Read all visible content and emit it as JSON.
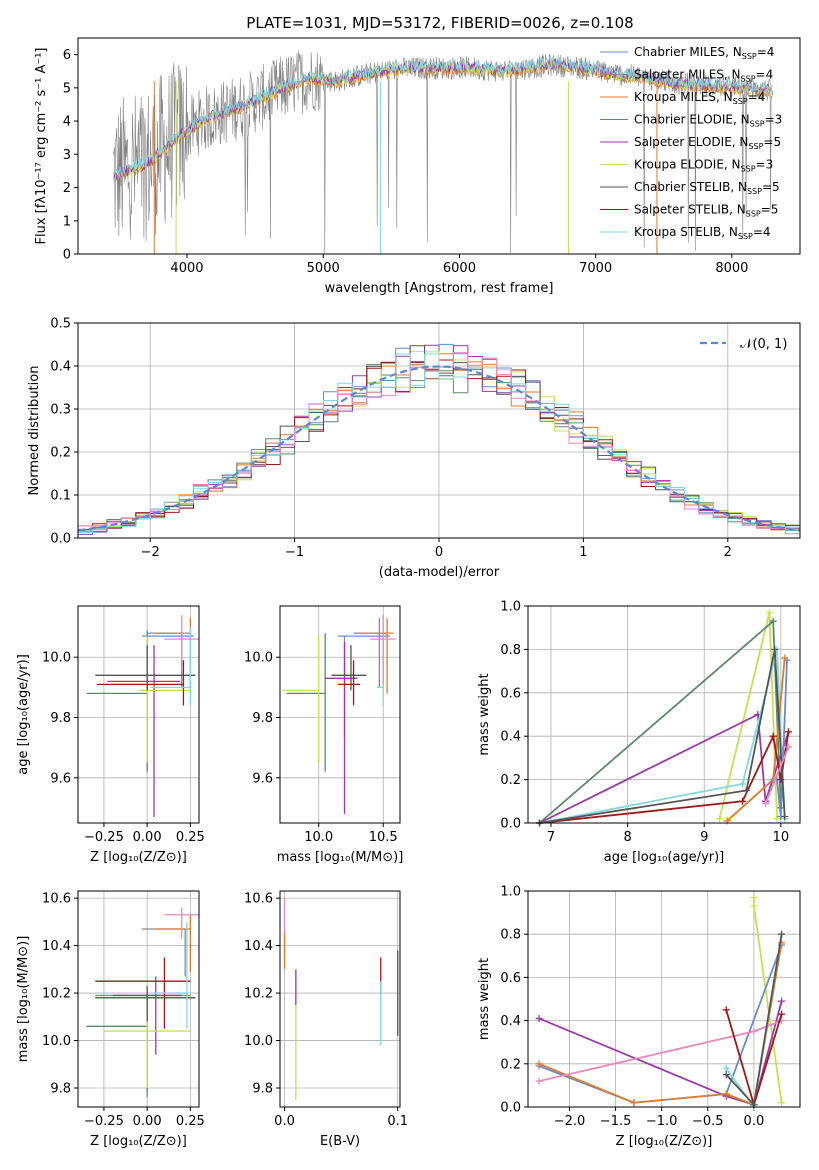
{
  "figure_title": "PLATE=1031, MJD=53172, FIBERID=0026, z=0.108",
  "colors": {
    "chabrier_miles": "#6b8bd0",
    "salpeter_miles": "#8a8a8a",
    "kroupa_miles": "#e07b2a",
    "chabrier_elodie": "#5a8a6a",
    "salpeter_elodie": "#9a3aa8",
    "kroupa_elodie": "#c8e050",
    "chabrier_stelib": "#555555",
    "salpeter_stelib": "#a01818",
    "kroupa_stelib": "#80d8e0",
    "pink": "#e888c0",
    "gaussian": "#5b88d8"
  },
  "chart_data": [
    {
      "id": "spectrum",
      "type": "line",
      "xlabel": "wavelength [Angstrom, rest frame]",
      "ylabel": "Flux [fλ10⁻¹⁷ erg cm⁻² s⁻¹ A⁻¹]",
      "xlim": [
        3200,
        8500
      ],
      "ylim": [
        0,
        6.5
      ],
      "xticks": [
        "4000",
        "5000",
        "6000",
        "7000",
        "8000"
      ],
      "yticks": [
        "0",
        "1",
        "2",
        "3",
        "4",
        "5",
        "6"
      ],
      "legend": {
        "placement": "top-right",
        "entries": [
          {
            "main": "Chabrier MILES, N",
            "sub": "SSP",
            "tail": "=4",
            "color": "chabrier_miles"
          },
          {
            "main": "Salpeter MILES, N",
            "sub": "SSP",
            "tail": "=4",
            "color": "salpeter_miles"
          },
          {
            "main": "Kroupa MILES, N",
            "sub": "SSP",
            "tail": "=4",
            "color": "kroupa_miles"
          },
          {
            "main": "Chabrier ELODIE, N",
            "sub": "SSP",
            "tail": "=3",
            "color": "chabrier_elodie"
          },
          {
            "main": "Salpeter ELODIE, N",
            "sub": "SSP",
            "tail": "=5",
            "color": "salpeter_elodie"
          },
          {
            "main": "Kroupa ELODIE, N",
            "sub": "SSP",
            "tail": "=3",
            "color": "kroupa_elodie"
          },
          {
            "main": "Chabrier STELIB, N",
            "sub": "SSP",
            "tail": "=5",
            "color": "chabrier_stelib"
          },
          {
            "main": "Salpeter STELIB, N",
            "sub": "SSP",
            "tail": "=5",
            "color": "salpeter_stelib"
          },
          {
            "main": "Kroupa STELIB, N",
            "sub": "SSP",
            "tail": "=4",
            "color": "kroupa_stelib"
          }
        ]
      },
      "continuum": {
        "x": [
          3500,
          3700,
          3900,
          4100,
          4300,
          4500,
          4700,
          4900,
          5100,
          5300,
          5500,
          5700,
          5900,
          6100,
          6300,
          6500,
          6700,
          6900,
          7100,
          7300,
          7500,
          7700,
          7900,
          8100,
          8300
        ],
        "y": [
          2.4,
          2.7,
          3.4,
          4.0,
          4.3,
          4.6,
          5.0,
          5.3,
          5.2,
          5.4,
          5.55,
          5.6,
          5.6,
          5.6,
          5.5,
          5.6,
          5.7,
          5.6,
          5.45,
          5.35,
          5.2,
          5.1,
          5.05,
          5.0,
          4.9
        ]
      }
    },
    {
      "id": "residuals",
      "type": "histogram",
      "xlabel": "(data-model)/error",
      "ylabel": "Normed distribution",
      "xlim": [
        -2.5,
        2.5
      ],
      "ylim": [
        0,
        0.5
      ],
      "xticks": [
        "−2",
        "−1",
        "0",
        "1",
        "2"
      ],
      "yticks": [
        "0.0",
        "0.1",
        "0.2",
        "0.3",
        "0.4",
        "0.5"
      ],
      "grid": true,
      "legend": {
        "placement": "top-right",
        "entries": [
          {
            "label": "𝒩(0, 1)",
            "color": "gaussian",
            "style": "dashed"
          }
        ]
      },
      "bin_width": 0.1,
      "bin_start": -2.5
    },
    {
      "id": "age_vs_Z",
      "type": "errorbar",
      "xlabel": "Z [log₁₀(Z/Z⊙)]",
      "ylabel": "age  [log₁₀(age/yr)]",
      "xlim": [
        -0.4,
        0.3
      ],
      "ylim": [
        9.45,
        10.17
      ],
      "xticks": [
        "−0.25",
        "0.00",
        "0.25"
      ],
      "yticks": [
        "9.6",
        "9.8",
        "10.0"
      ],
      "grid": true,
      "points": [
        {
          "x": 0.0,
          "y": 10.07,
          "x_err": [
            0.03,
            0.27
          ],
          "y_err": [
            0.43,
            0.02
          ],
          "color": "chabrier_miles"
        },
        {
          "x": 0.2,
          "y": 10.08,
          "x_err": [
            0.2,
            0.0
          ],
          "y_err": [
            0.18,
            0.0
          ],
          "color": "salpeter_miles"
        },
        {
          "x": 0.25,
          "y": 10.08,
          "x_err": [
            0.2,
            0.0
          ],
          "y_err": [
            0.2,
            0.05
          ],
          "color": "kroupa_miles"
        },
        {
          "x": 0.0,
          "y": 9.88,
          "x_err": [
            0.35,
            0.0
          ],
          "y_err": [
            0.26,
            0.2
          ],
          "color": "chabrier_elodie"
        },
        {
          "x": 0.04,
          "y": 9.92,
          "x_err": [
            0.27,
            0.15
          ],
          "y_err": [
            0.45,
            0.12
          ],
          "color": "salpeter_elodie"
        },
        {
          "x": 0.0,
          "y": 9.89,
          "x_err": [
            0.05,
            0.25
          ],
          "y_err": [
            0.24,
            0.18
          ],
          "color": "kroupa_elodie"
        },
        {
          "x": 0.0,
          "y": 9.94,
          "x_err": [
            0.3,
            0.28
          ],
          "y_err": [
            0.05,
            0.1
          ],
          "color": "chabrier_stelib"
        },
        {
          "x": 0.21,
          "y": 9.91,
          "x_err": [
            0.5,
            0.0
          ],
          "y_err": [
            0.07,
            0.08
          ],
          "color": "salpeter_stelib"
        },
        {
          "x": 0.25,
          "y": 9.9,
          "x_err": [
            0.23,
            0.0
          ],
          "y_err": [
            0.06,
            0.2
          ],
          "color": "kroupa_stelib"
        },
        {
          "x": 0.2,
          "y": 10.06,
          "x_err": [
            0.1,
            0.1
          ],
          "y_err": [
            0.1,
            0.08
          ],
          "color": "pink"
        }
      ]
    },
    {
      "id": "age_vs_mass",
      "type": "errorbar",
      "xlabel": "mass [log₁₀(M/M⊙)]",
      "ylabel": "",
      "xlim": [
        9.7,
        10.63
      ],
      "ylim": [
        9.45,
        10.17
      ],
      "xticks": [
        "10.0",
        "10.5"
      ],
      "yticks": [
        "9.6",
        "9.8",
        "10.0"
      ],
      "grid": true,
      "points": [
        {
          "x": 10.2,
          "y": 10.07,
          "x_err": [
            0.05,
            0.35
          ],
          "y_err": [
            0.35,
            0.0
          ],
          "color": "chabrier_miles"
        },
        {
          "x": 10.47,
          "y": 10.08,
          "x_err": [
            0.2,
            0.05
          ],
          "y_err": [
            0.18,
            0.05
          ],
          "color": "salpeter_miles"
        },
        {
          "x": 10.53,
          "y": 10.08,
          "x_err": [
            0.2,
            0.05
          ],
          "y_err": [
            0.2,
            0.05
          ],
          "color": "kroupa_miles"
        },
        {
          "x": 10.05,
          "y": 9.88,
          "x_err": [
            0.3,
            0.0
          ],
          "y_err": [
            0.26,
            0.2
          ],
          "color": "chabrier_elodie"
        },
        {
          "x": 10.2,
          "y": 9.93,
          "x_err": [
            0.15,
            0.1
          ],
          "y_err": [
            0.45,
            0.12
          ],
          "color": "salpeter_elodie"
        },
        {
          "x": 10.0,
          "y": 9.89,
          "x_err": [
            0.28,
            0.0
          ],
          "y_err": [
            0.24,
            0.18
          ],
          "color": "kroupa_elodie"
        },
        {
          "x": 10.25,
          "y": 9.94,
          "x_err": [
            0.15,
            0.12
          ],
          "y_err": [
            0.05,
            0.1
          ],
          "color": "chabrier_stelib"
        },
        {
          "x": 10.27,
          "y": 9.91,
          "x_err": [
            0.12,
            0.05
          ],
          "y_err": [
            0.07,
            0.08
          ],
          "color": "salpeter_stelib"
        },
        {
          "x": 10.5,
          "y": 9.9,
          "x_err": [
            0.05,
            0.0
          ],
          "y_err": [
            0.06,
            0.2
          ],
          "color": "kroupa_stelib"
        },
        {
          "x": 10.5,
          "y": 10.06,
          "x_err": [
            0.1,
            0.1
          ],
          "y_err": [
            0.15,
            0.08
          ],
          "color": "pink"
        }
      ]
    },
    {
      "id": "weight_vs_age",
      "type": "line",
      "xlabel": "age  [log₁₀(age/yr)]",
      "ylabel": "mass weight",
      "xlim": [
        6.7,
        10.25
      ],
      "ylim": [
        0,
        1.0
      ],
      "xticks": [
        "7",
        "8",
        "9",
        "10"
      ],
      "yticks": [
        "0.0",
        "0.2",
        "0.4",
        "0.6",
        "0.8",
        "1.0"
      ],
      "grid": true,
      "series": [
        {
          "color": "kroupa_elodie",
          "x": [
            9.2,
            9.85,
            9.95
          ],
          "y": [
            0.02,
            0.97,
            0.02
          ]
        },
        {
          "color": "chabrier_elodie",
          "x": [
            6.85,
            9.9,
            10.0
          ],
          "y": [
            0.0,
            0.93,
            0.07
          ]
        },
        {
          "color": "salpeter_elodie",
          "x": [
            6.85,
            9.7,
            9.8,
            10.1
          ],
          "y": [
            0.0,
            0.5,
            0.1,
            0.42
          ]
        },
        {
          "color": "kroupa_stelib",
          "x": [
            6.85,
            9.5,
            9.95,
            10.05
          ],
          "y": [
            0.0,
            0.18,
            0.8,
            0.02
          ]
        },
        {
          "color": "chabrier_miles",
          "x": [
            9.95,
            10.0,
            10.08
          ],
          "y": [
            0.2,
            0.03,
            0.75
          ]
        },
        {
          "color": "kroupa_miles",
          "x": [
            9.3,
            9.9,
            10.05
          ],
          "y": [
            0.01,
            0.2,
            0.76
          ]
        },
        {
          "color": "salpeter_stelib",
          "x": [
            6.85,
            9.5,
            9.9,
            10.0,
            10.1
          ],
          "y": [
            0.0,
            0.1,
            0.4,
            0.2,
            0.42
          ]
        },
        {
          "color": "chabrier_stelib",
          "x": [
            6.85,
            9.55,
            9.92,
            10.05
          ],
          "y": [
            0.0,
            0.15,
            0.8,
            0.03
          ]
        },
        {
          "color": "pink",
          "x": [
            9.8,
            10.1
          ],
          "y": [
            0.09,
            0.35
          ]
        }
      ]
    },
    {
      "id": "mass_vs_Z",
      "type": "errorbar",
      "xlabel": "Z [log₁₀(Z/Z⊙)]",
      "ylabel": "mass [log₁₀(M/M⊙)]",
      "xlim": [
        -0.4,
        0.3
      ],
      "ylim": [
        9.72,
        10.63
      ],
      "xticks": [
        "−0.25",
        "0.00",
        "0.25"
      ],
      "yticks": [
        "9.8",
        "10.0",
        "10.2",
        "10.4",
        "10.6"
      ],
      "grid": true,
      "points": [
        {
          "x": 0.0,
          "y": 10.19,
          "x_err": [
            0.3,
            0.25
          ],
          "y_err": [
            0.43,
            0.03
          ],
          "color": "chabrier_miles"
        },
        {
          "x": 0.22,
          "y": 10.47,
          "x_err": [
            0.25,
            0.0
          ],
          "y_err": [
            0.2,
            0.0
          ],
          "color": "salpeter_miles"
        },
        {
          "x": 0.25,
          "y": 10.47,
          "x_err": [
            0.2,
            0.0
          ],
          "y_err": [
            0.18,
            0.06
          ],
          "color": "kroupa_miles"
        },
        {
          "x": 0.0,
          "y": 10.06,
          "x_err": [
            0.35,
            0.0
          ],
          "y_err": [
            0.28,
            0.16
          ],
          "color": "chabrier_elodie"
        },
        {
          "x": 0.05,
          "y": 10.19,
          "x_err": [
            0.25,
            0.15
          ],
          "y_err": [
            0.25,
            0.08
          ],
          "color": "salpeter_elodie"
        },
        {
          "x": 0.0,
          "y": 10.04,
          "x_err": [
            0.25,
            0.25
          ],
          "y_err": [
            0.24,
            0.18
          ],
          "color": "kroupa_elodie"
        },
        {
          "x": 0.0,
          "y": 10.18,
          "x_err": [
            0.3,
            0.28
          ],
          "y_err": [
            0.1,
            0.05
          ],
          "color": "chabrier_stelib"
        },
        {
          "x": 0.1,
          "y": 10.25,
          "x_err": [
            0.4,
            0.15
          ],
          "y_err": [
            0.2,
            0.1
          ],
          "color": "salpeter_stelib"
        },
        {
          "x": 0.23,
          "y": 10.2,
          "x_err": [
            0.2,
            0.0
          ],
          "y_err": [
            0.15,
            0.3
          ],
          "color": "kroupa_stelib"
        },
        {
          "x": 0.2,
          "y": 10.53,
          "x_err": [
            0.1,
            0.1
          ],
          "y_err": [
            0.1,
            0.03
          ],
          "color": "pink"
        }
      ]
    },
    {
      "id": "mass_vs_ebv",
      "type": "errorbar",
      "xlabel": "E(B-V)",
      "ylabel": "",
      "xlim": [
        -0.004,
        0.102
      ],
      "ylim": [
        9.72,
        10.63
      ],
      "xticks": [
        "0.0",
        "0.1"
      ],
      "yticks": [
        "9.8",
        "10.0",
        "10.2",
        "10.4",
        "10.6"
      ],
      "grid": true,
      "points": [
        {
          "x": 0.0,
          "y": 10.45,
          "x_err": [
            0,
            0
          ],
          "y_err": [
            0.1,
            0.15
          ],
          "color": "pink"
        },
        {
          "x": 0.0,
          "y": 10.35,
          "x_err": [
            0,
            0
          ],
          "y_err": [
            0.05,
            0.1
          ],
          "color": "kroupa_miles"
        },
        {
          "x": 0.01,
          "y": 10.1,
          "x_err": [
            0,
            0
          ],
          "y_err": [
            0.35,
            0.1
          ],
          "color": "kroupa_elodie"
        },
        {
          "x": 0.01,
          "y": 10.25,
          "x_err": [
            0,
            0
          ],
          "y_err": [
            0.1,
            0.05
          ],
          "color": "salpeter_elodie"
        },
        {
          "x": 0.085,
          "y": 10.27,
          "x_err": [
            0,
            0
          ],
          "y_err": [
            0.07,
            0.08
          ],
          "color": "salpeter_stelib"
        },
        {
          "x": 0.085,
          "y": 10.1,
          "x_err": [
            0,
            0
          ],
          "y_err": [
            0.12,
            0.15
          ],
          "color": "kroupa_stelib"
        },
        {
          "x": 0.1,
          "y": 10.2,
          "x_err": [
            0,
            0
          ],
          "y_err": [
            0.18,
            0.18
          ],
          "color": "chabrier_stelib"
        }
      ]
    },
    {
      "id": "weight_vs_Z",
      "type": "line",
      "xlabel": "Z [log₁₀(Z/Z⊙)]",
      "ylabel": "mass weight",
      "xlim": [
        -2.45,
        0.5
      ],
      "ylim": [
        0,
        1.0
      ],
      "xticks": [
        "−2.0",
        "−1.5",
        "−1.0",
        "−0.5",
        "0.0"
      ],
      "yticks": [
        "0.0",
        "0.2",
        "0.4",
        "0.6",
        "0.8",
        "1.0"
      ],
      "grid": true,
      "series": [
        {
          "color": "kroupa_elodie",
          "x": [
            0.0,
            0.0,
            0.3
          ],
          "y": [
            0.97,
            0.93,
            0.02
          ]
        },
        {
          "color": "salpeter_elodie",
          "x": [
            -2.33,
            -0.3,
            0.0,
            0.3
          ],
          "y": [
            0.41,
            0.05,
            0.01,
            0.49
          ]
        },
        {
          "color": "chabrier_miles",
          "x": [
            -2.33,
            -1.3,
            -0.3,
            0.3
          ],
          "y": [
            0.19,
            0.02,
            0.06,
            0.75
          ]
        },
        {
          "color": "kroupa_miles",
          "x": [
            -2.33,
            -1.3,
            -0.3,
            0.0,
            0.3
          ],
          "y": [
            0.2,
            0.02,
            0.06,
            0.01,
            0.76
          ]
        },
        {
          "color": "pink",
          "x": [
            -2.33,
            0.0,
            0.3
          ],
          "y": [
            0.12,
            0.35,
            0.4
          ]
        },
        {
          "color": "kroupa_stelib",
          "x": [
            -0.3,
            0.0,
            0.3
          ],
          "y": [
            0.18,
            0.0,
            0.8
          ]
        },
        {
          "color": "salpeter_stelib",
          "x": [
            -0.3,
            0.0,
            0.3
          ],
          "y": [
            0.45,
            0.01,
            0.43
          ]
        },
        {
          "color": "chabrier_stelib",
          "x": [
            -0.3,
            0.0,
            0.3
          ],
          "y": [
            0.15,
            0.01,
            0.8
          ]
        }
      ]
    }
  ]
}
